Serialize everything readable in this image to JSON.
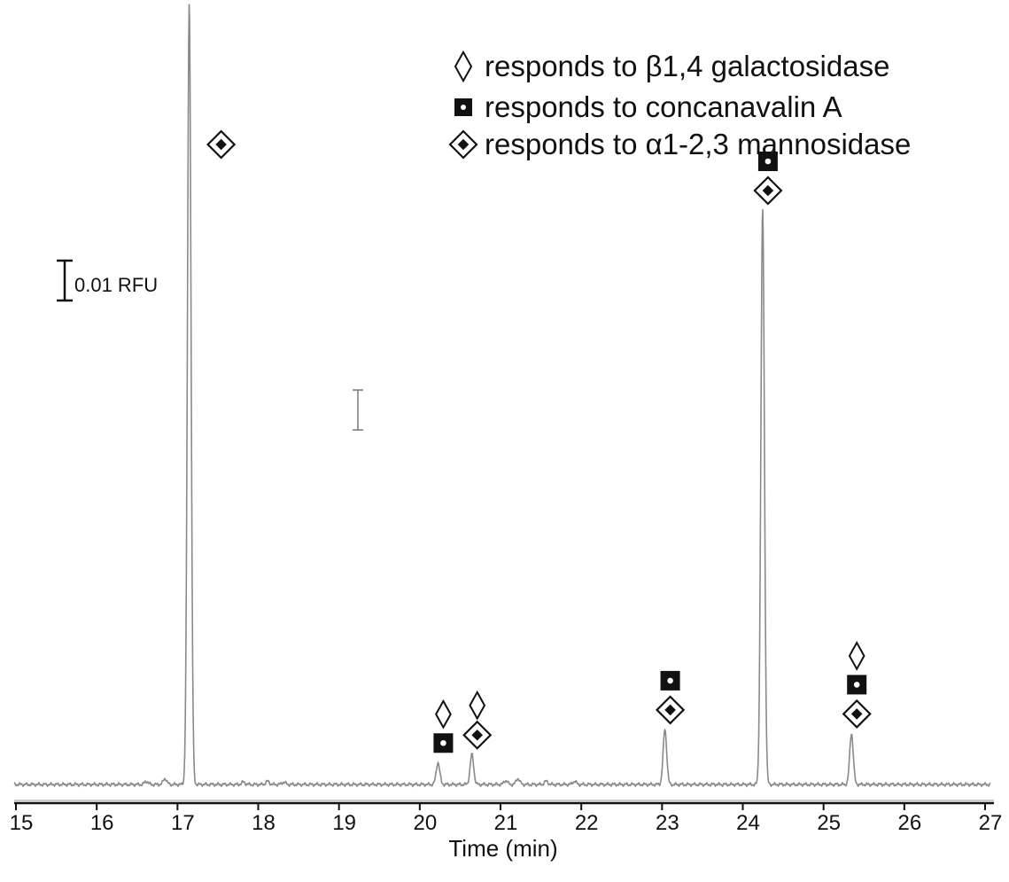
{
  "chart_data": {
    "type": "line",
    "title": "",
    "xlabel": "Time (min)",
    "ylabel": "",
    "xlim": [
      15,
      27
    ],
    "x_ticks": [
      "15",
      "16",
      "17",
      "18",
      "19",
      "20",
      "21",
      "22",
      "23",
      "24",
      "25",
      "26",
      "27"
    ],
    "series": [
      {
        "peaks": [
          {
            "x": 16.55,
            "height": 0.0008
          },
          {
            "x": 16.78,
            "height": 0.0015
          },
          {
            "x": 17.08,
            "height": 0.196
          },
          {
            "x": 17.75,
            "height": 0.0006
          },
          {
            "x": 18.05,
            "height": 0.0008
          },
          {
            "x": 18.25,
            "height": 0.0006
          },
          {
            "x": 20.16,
            "height": 0.0055
          },
          {
            "x": 20.58,
            "height": 0.0075
          },
          {
            "x": 21.0,
            "height": 0.001
          },
          {
            "x": 21.15,
            "height": 0.0015
          },
          {
            "x": 21.5,
            "height": 0.0008
          },
          {
            "x": 21.85,
            "height": 0.0008
          },
          {
            "x": 22.97,
            "height": 0.0138
          },
          {
            "x": 24.18,
            "height": 0.144
          },
          {
            "x": 25.28,
            "height": 0.0128
          }
        ],
        "baseline": 0.0
      }
    ],
    "legend": {
      "position": "top-right",
      "entries": [
        {
          "marker": "open-diamond",
          "label": "responds to β1,4 galactosidase"
        },
        {
          "marker": "square-dot",
          "label": "responds to concanavalin A"
        },
        {
          "marker": "dotted-diamond",
          "label": "responds to α1-2,3 mannosidase"
        }
      ]
    },
    "peak_markers": [
      {
        "x": 17.08,
        "markers": [
          "dotted-diamond"
        ]
      },
      {
        "x": 20.16,
        "markers": [
          "open-diamond",
          "square-dot"
        ]
      },
      {
        "x": 20.58,
        "markers": [
          "open-diamond",
          "dotted-diamond"
        ]
      },
      {
        "x": 22.97,
        "markers": [
          "square-dot",
          "dotted-diamond"
        ]
      },
      {
        "x": 24.18,
        "markers": [
          "square-dot",
          "dotted-diamond"
        ]
      },
      {
        "x": 25.28,
        "markers": [
          "open-diamond",
          "square-dot",
          "dotted-diamond"
        ]
      }
    ],
    "scale_bar": {
      "label": "0.01 RFU",
      "value": 0.01
    }
  }
}
